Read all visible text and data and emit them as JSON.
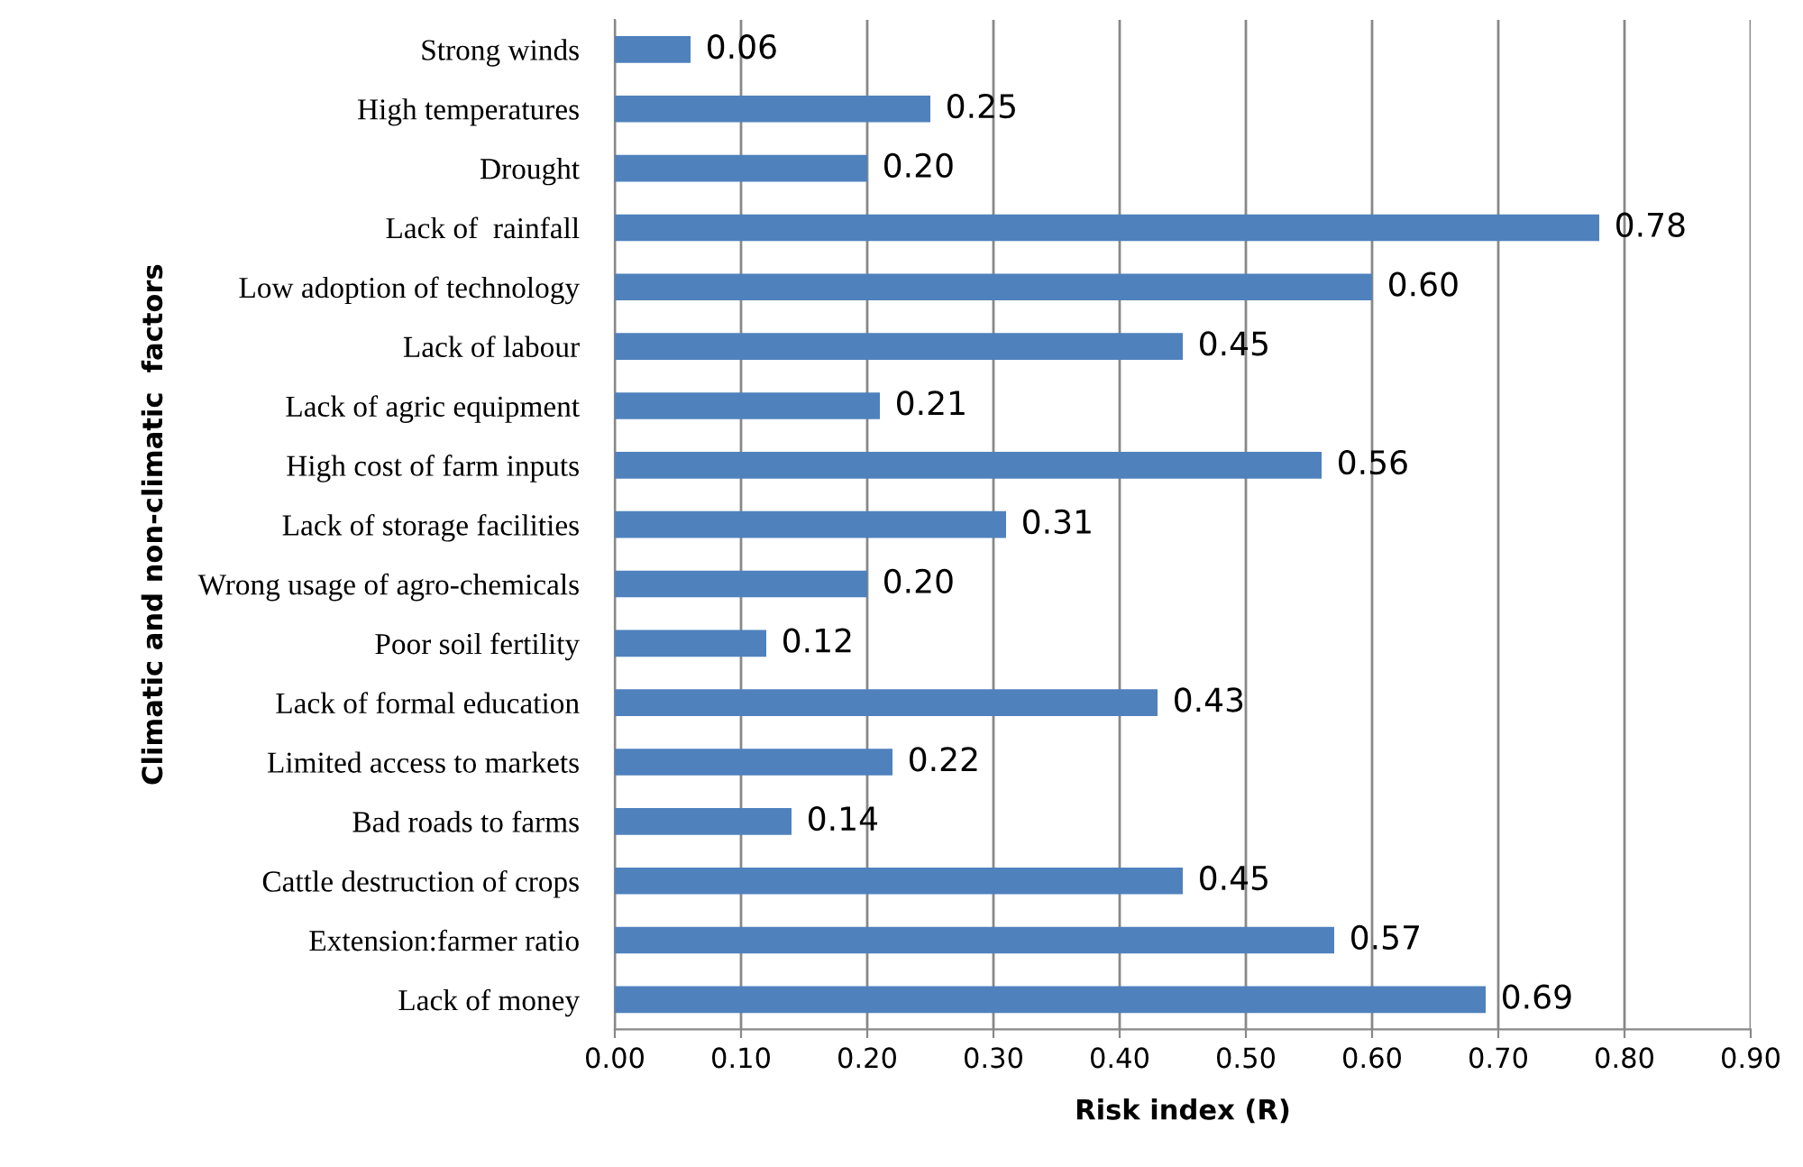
{
  "chart_data": {
    "type": "bar",
    "orientation": "horizontal",
    "xlabel": "Risk index (R)",
    "ylabel": "Climatic and non-climatic  factors",
    "categories": [
      "Strong winds",
      "High temperatures",
      "Drought",
      "Lack of  rainfall",
      "Low adoption of technology",
      "Lack of labour",
      "Lack of agric equipment",
      "High cost of farm inputs",
      "Lack of storage facilities",
      "Wrong usage of agro-chemicals",
      "Poor soil fertility",
      "Lack of formal education",
      "Limited access to markets",
      "Bad roads to farms",
      "Cattle destruction of crops",
      "Extension:farmer ratio",
      "Lack of money"
    ],
    "values": [
      0.06,
      0.25,
      0.2,
      0.78,
      0.6,
      0.45,
      0.21,
      0.56,
      0.31,
      0.2,
      0.12,
      0.43,
      0.22,
      0.14,
      0.45,
      0.57,
      0.69
    ],
    "value_labels": [
      "0.06",
      "0.25",
      "0.20",
      "0.78",
      "0.60",
      "0.45",
      "0.21",
      "0.56",
      "0.31",
      "0.20",
      "0.12",
      "0.43",
      "0.22",
      "0.14",
      "0.45",
      "0.57",
      "0.69"
    ],
    "color": "#4f81bd",
    "xlim": [
      0,
      0.9
    ],
    "xticks": [
      {
        "value": 0,
        "label": "0.00"
      },
      {
        "value": 0.1,
        "label": "0.10"
      },
      {
        "value": 0.2,
        "label": "0.20"
      },
      {
        "value": 0.3,
        "label": "0.30"
      },
      {
        "value": 0.4,
        "label": "0.40"
      },
      {
        "value": 0.5,
        "label": "0.50"
      },
      {
        "value": 0.6,
        "label": "0.60"
      },
      {
        "value": 0.7,
        "label": "0.70"
      },
      {
        "value": 0.8,
        "label": "0.80"
      },
      {
        "value": 0.9,
        "label": "0.90"
      }
    ],
    "grid": "x",
    "legend": false
  }
}
